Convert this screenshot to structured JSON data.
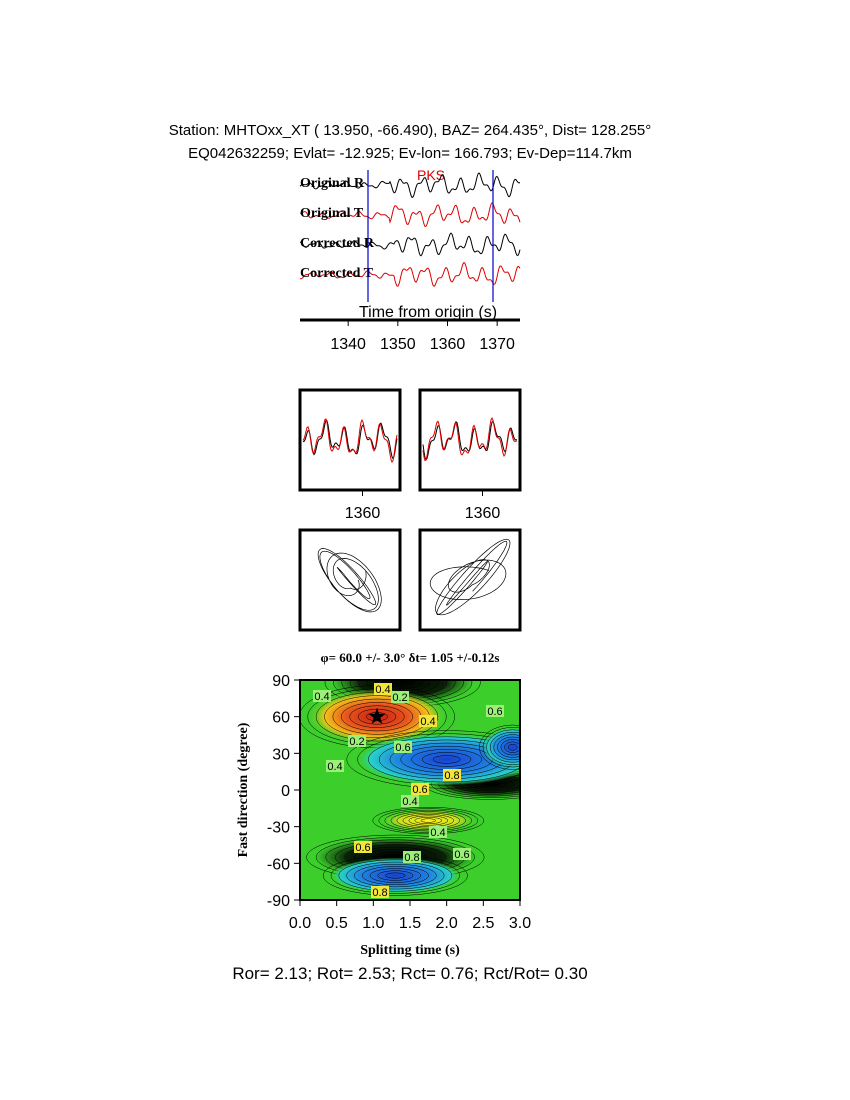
{
  "header": {
    "station": "Station: MHTOxx_XT (  13.950,  -66.490), BAZ=  264.435°, Dist=  128.255°",
    "event": "EQ042632259; Evlat= -12.925; Ev-lon= 166.793; Ev-Dep=114.7km"
  },
  "traces": {
    "labels": [
      "Original R",
      "Original T",
      "Corrected R",
      "Corrected T"
    ],
    "phase": "PKS",
    "xlabel": "Time from origin (s)",
    "xlim": [
      1330.3,
      1374.6
    ],
    "xticks": [
      1340,
      1350,
      1360,
      1370
    ]
  },
  "windows": [
    {
      "xlim": [
        1350,
        1366
      ],
      "xticks": [
        1360
      ]
    },
    {
      "xlim": [
        1350,
        1366
      ],
      "xticks": [
        1360
      ]
    }
  ],
  "grid_search": {
    "title": "φ= 60.0 +/- 3.0° δt= 1.05 +/-0.12s",
    "xlabel": "Splitting time (s)",
    "ylabel": "Fast direction (degree)",
    "xlim": [
      0,
      3
    ],
    "ylim": [
      -90,
      90
    ],
    "xticks": [
      {
        "value": 0,
        "label": "0.0"
      },
      0.5,
      {
        "value": 1,
        "label": "1.0"
      },
      1.5,
      {
        "value": 2,
        "label": "2.0"
      },
      2.5,
      {
        "value": 3,
        "label": "3.0"
      }
    ],
    "yticks": [
      -90,
      -60,
      -30,
      0,
      30,
      60,
      90
    ],
    "best": {
      "dt": 1.05,
      "phi": 60
    },
    "contour_labels": [
      0.4,
      0.2,
      0.4,
      0.4,
      0.6,
      0.2,
      0.8,
      0.6,
      0.4,
      0.6,
      0.4,
      0.4,
      0.6,
      0.8,
      0.6,
      0.8
    ]
  },
  "footer": "Ror= 2.13; Rot= 2.53; Rct= 0.76; Rct/Rot= 0.30"
}
